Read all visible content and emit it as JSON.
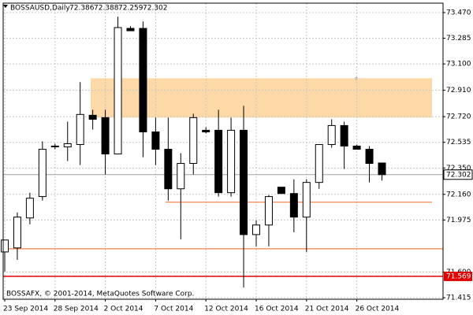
{
  "chart_data": {
    "type": "candlestick",
    "title": "BOSSAUSD,Daily",
    "footer": "BOSSAFX, © 2001-2014, MetaQuotes Software Corp.",
    "categories": [
      "23 Sep 2014",
      null,
      null,
      null,
      "28 Sep 2014",
      null,
      null,
      null,
      "2 Oct 2014",
      null,
      null,
      null,
      "7 Oct 2014",
      null,
      null,
      null,
      "12 Oct 2014",
      null,
      null,
      null,
      "16 Oct 2014",
      null,
      null,
      null,
      "21 Oct 2014",
      null,
      null,
      null,
      "26 Oct 2014",
      null,
      null
    ],
    "open": [
      71.745,
      71.774,
      71.99,
      72.144,
      72.508,
      72.502,
      72.519,
      72.73,
      72.713,
      72.451,
      73.356,
      73.356,
      72.61,
      72.485,
      72.2,
      72.383,
      72.622,
      72.622,
      72.172,
      72.622,
      71.87,
      71.939,
      72.212,
      72.166,
      71.996,
      72.246,
      72.519,
      72.656,
      72.508,
      72.485,
      72.386
    ],
    "high": [
      71.831,
      72.03,
      72.172,
      72.542,
      72.525,
      72.684,
      72.969,
      72.77,
      72.77,
      73.441,
      73.373,
      73.407,
      72.713,
      72.713,
      72.457,
      72.741,
      72.644,
      72.77,
      72.713,
      72.798,
      71.973,
      72.155,
      72.212,
      72.269,
      72.269,
      72.519,
      72.701,
      72.684,
      72.519,
      72.508,
      72.388
    ],
    "low": [
      71.603,
      71.688,
      71.944,
      72.115,
      72.485,
      72.4,
      72.371,
      72.627,
      72.303,
      72.451,
      73.339,
      72.428,
      72.371,
      72.115,
      71.836,
      72.303,
      72.599,
      72.144,
      72.144,
      71.489,
      71.785,
      71.785,
      72.166,
      71.887,
      71.745,
      72.2,
      72.496,
      72.343,
      72.485,
      72.246,
      72.259
    ],
    "close": [
      71.831,
      71.996,
      72.132,
      72.485,
      72.508,
      72.525,
      72.736,
      72.701,
      72.451,
      73.362,
      73.339,
      72.61,
      72.485,
      72.2,
      72.383,
      72.713,
      72.61,
      72.172,
      72.622,
      71.87,
      71.939,
      72.144,
      72.166,
      71.996,
      72.246,
      72.519,
      72.656,
      72.508,
      72.485,
      72.383,
      72.302
    ],
    "ylim": [
      71.404,
      73.538
    ],
    "yticks": [
      {
        "value": 73.47,
        "label": "73.470"
      },
      73.285,
      {
        "value": 73.1,
        "label": "73.100"
      },
      {
        "value": 72.91,
        "label": "72.910"
      },
      {
        "value": 72.72,
        "label": "72.720"
      },
      72.535,
      {
        "value": 72.35,
        "label": "72.350"
      },
      {
        "value": 72.16,
        "label": "72.160"
      },
      71.975,
      {
        "value": 71.6,
        "label": "71.600"
      },
      71.415
    ],
    "grid": true,
    "up_color": "#ffffff",
    "down_color": "#000000",
    "zone": {
      "range": [
        72.713,
        72.997
      ],
      "color": "#fdd9a8"
    },
    "levels": [
      {
        "value": 72.104,
        "color": "#f07f4f"
      },
      {
        "value": 71.768,
        "color": "#f07f4f"
      },
      {
        "value": 71.569,
        "color": "#e00000",
        "label": "71.569"
      }
    ],
    "current_price": 72.302
  }
}
